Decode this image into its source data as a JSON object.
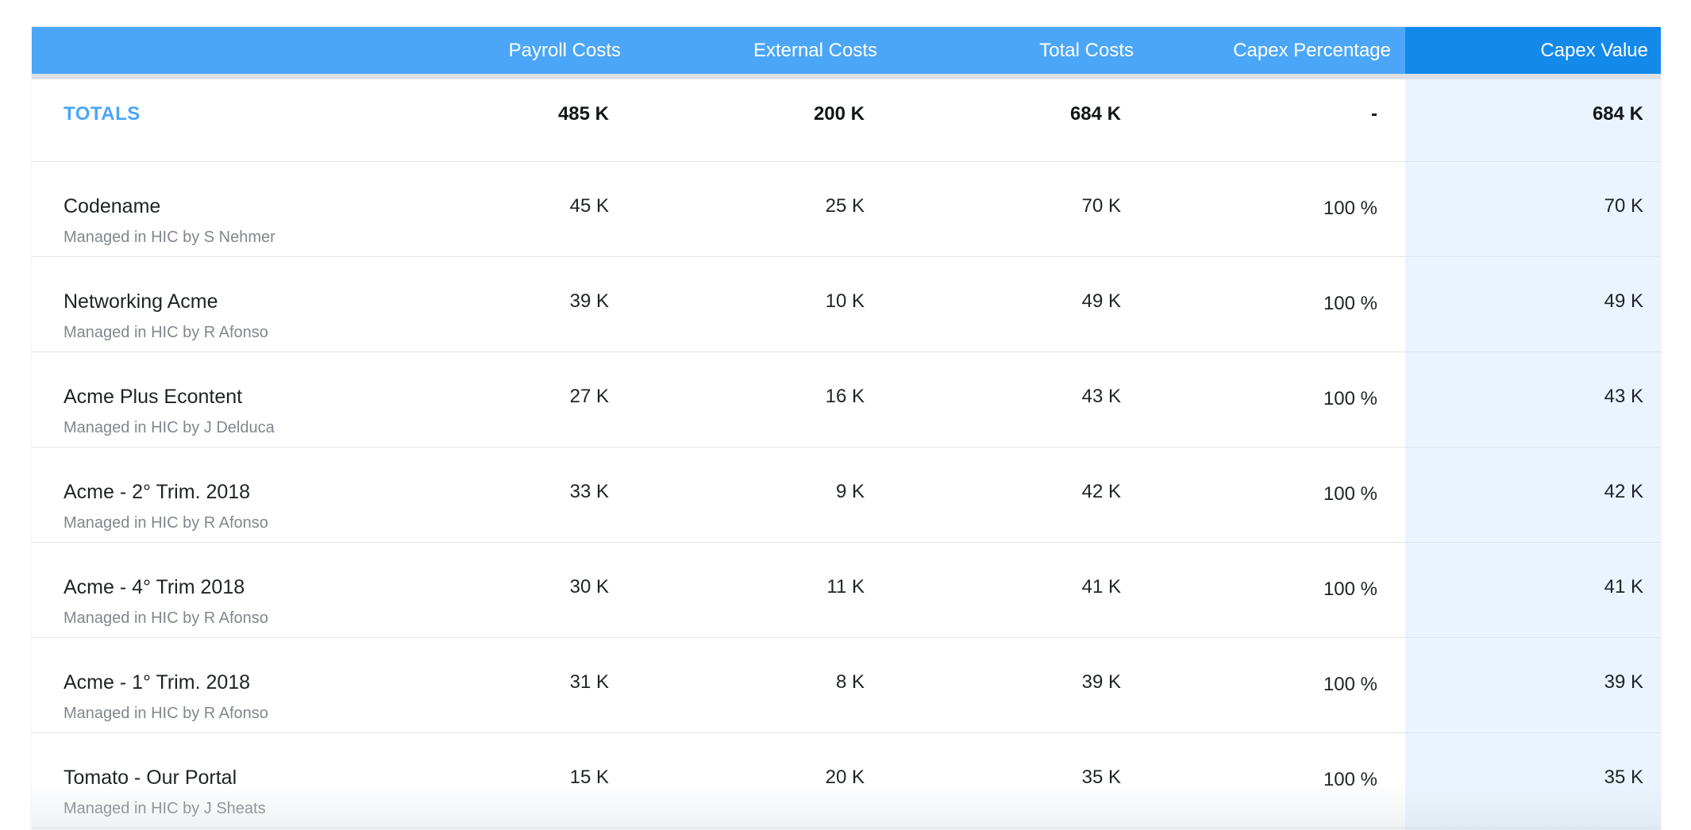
{
  "table": {
    "columns": [
      {
        "key": "name",
        "label": ""
      },
      {
        "key": "payroll",
        "label": "Payroll Costs"
      },
      {
        "key": "external",
        "label": "External Costs"
      },
      {
        "key": "total",
        "label": "Total Costs"
      },
      {
        "key": "capex_pct",
        "label": "Capex Percentage"
      },
      {
        "key": "capex_value",
        "label": "Capex Value"
      }
    ],
    "totals": {
      "label": "TOTALS",
      "payroll": "485 K",
      "external": "200 K",
      "total": "684 K",
      "capex_pct": "-",
      "capex_value": "684 K"
    },
    "rows": [
      {
        "name": "Codename",
        "manager": "Managed in HIC by S Nehmer",
        "payroll": "45 K",
        "external": "25 K",
        "total": "70 K",
        "capex_pct": "100 %",
        "capex_value": "70 K"
      },
      {
        "name": "Networking Acme",
        "manager": "Managed in HIC by R Afonso",
        "payroll": "39 K",
        "external": "10 K",
        "total": "49 K",
        "capex_pct": "100 %",
        "capex_value": "49 K"
      },
      {
        "name": "Acme Plus Econtent",
        "manager": "Managed in HIC by J Delduca",
        "payroll": "27 K",
        "external": "16 K",
        "total": "43 K",
        "capex_pct": "100 %",
        "capex_value": "43 K"
      },
      {
        "name": "Acme - 2° Trim. 2018",
        "manager": "Managed in HIC by R Afonso",
        "payroll": "33 K",
        "external": "9 K",
        "total": "42 K",
        "capex_pct": "100 %",
        "capex_value": "42 K"
      },
      {
        "name": "Acme - 4° Trim 2018",
        "manager": "Managed in HIC by R Afonso",
        "payroll": "30 K",
        "external": "11 K",
        "total": "41 K",
        "capex_pct": "100 %",
        "capex_value": "41 K"
      },
      {
        "name": "Acme - 1° Trim. 2018",
        "manager": "Managed in HIC by R Afonso",
        "payroll": "31 K",
        "external": "8 K",
        "total": "39 K",
        "capex_pct": "100 %",
        "capex_value": "39 K"
      },
      {
        "name": "Tomato - Our Portal",
        "manager": "Managed in HIC by J Sheats",
        "payroll": "15 K",
        "external": "20 K",
        "total": "35 K",
        "capex_pct": "100 %",
        "capex_value": "35 K"
      }
    ]
  },
  "colors": {
    "header": "#4ba6f7",
    "header_highlight": "#1389ea",
    "highlight_column": "#ebf4fe",
    "totals_label": "#4ba6f7"
  }
}
